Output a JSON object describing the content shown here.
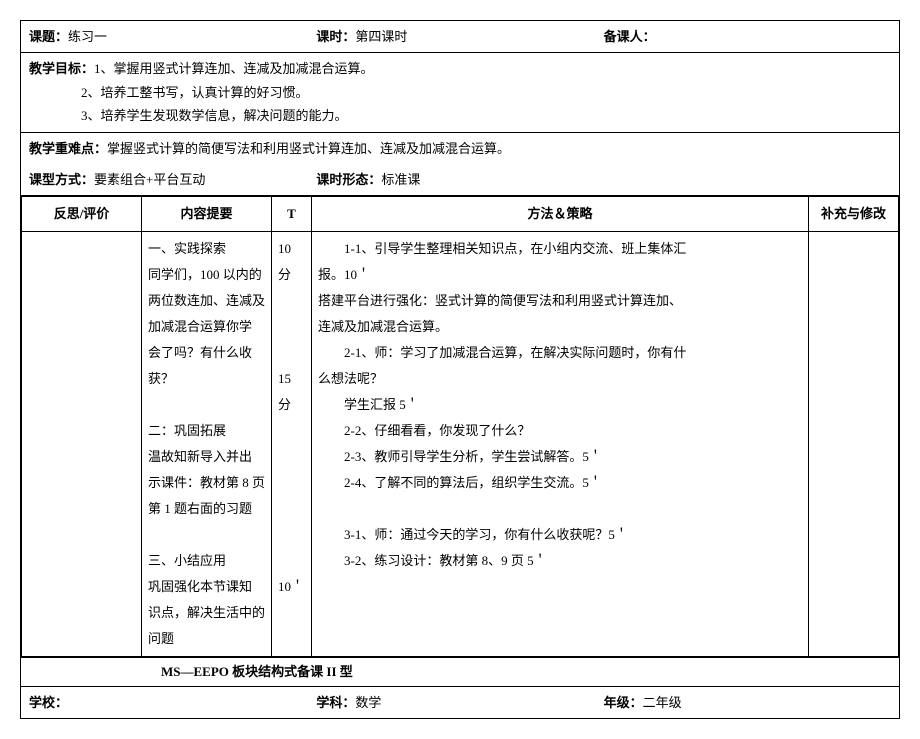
{
  "header": {
    "topic_label": "课题：",
    "topic_value": "练习一",
    "period_label": "课时：",
    "period_value": "第四课时",
    "preparer_label": "备课人："
  },
  "goals": {
    "label": "教学目标：",
    "g1": "1、掌握用竖式计算连加、连减及加减混合运算。",
    "g2": "2、培养工整书写，认真计算的好习惯。",
    "g3": "3、培养学生发现数学信息，解决问题的能力。"
  },
  "focus": {
    "label": "教学重难点：",
    "text": "掌握竖式计算的简便写法和利用竖式计算连加、连减及加减混合运算。"
  },
  "mode": {
    "label": "课型方式：",
    "value": "要素组合+平台互动",
    "form_label": "课时形态：",
    "form_value": "标准课"
  },
  "table": {
    "headers": {
      "reflect": "反思/评价",
      "outline": "内容提要",
      "t": "T",
      "method": "方法＆策略",
      "supp": "补充与修改"
    },
    "outline": {
      "s1_title": "一、实践探索",
      "s1_l1": "同学们，100 以内的",
      "s1_l2": "两位数连加、连减及",
      "s1_l3": "加减混合运算你学",
      "s1_l4": "会了吗？有什么收",
      "s1_l5": "获？",
      "s2_title": "二：巩固拓展",
      "s2_l1": "温故知新导入并出",
      "s2_l2": "示课件：教材第 8 页",
      "s2_l3": "第 1 题右面的习题",
      "s3_title": "三、小结应用",
      "s3_l1": "巩固强化本节课知",
      "s3_l2": "识点，解决生活中的",
      "s3_l3": "问题"
    },
    "t": {
      "t1": "10 分",
      "t2": "15 分",
      "t3": "10＇"
    },
    "method": {
      "m1_1a": "　　1-1、引导学生整理相关知识点，在小组内交流、班上集体汇",
      "m1_1b": "报。10＇",
      "m1_p1": "搭建平台进行强化：竖式计算的简便写法和利用竖式计算连加、",
      "m1_p2": "连减及加减混合运算。",
      "m2_1a": "　　2-1、师：学习了加减混合运算，在解决实际问题时，你有什",
      "m2_1b": "么想法呢？",
      "m2_r": "　　学生汇报 5＇",
      "m2_2": "　　2-2、仔细看看，你发现了什么？",
      "m2_3": "　　2-3、教师引导学生分析，学生尝试解答。5＇",
      "m2_4": "　　2-4、了解不同的算法后，组织学生交流。5＇",
      "m3_1": "　　3-1、师：通过今天的学习，你有什么收获呢？5＇",
      "m3_2": "　　3-2、练习设计：教材第 8、9 页 5＇"
    }
  },
  "footer": {
    "title": "MS—EEPO 板块结构式备课 II 型",
    "school_label": "学校：",
    "subject_label": "学科：",
    "subject_value": "数学",
    "grade_label": "年级：",
    "grade_value": "二年级"
  }
}
